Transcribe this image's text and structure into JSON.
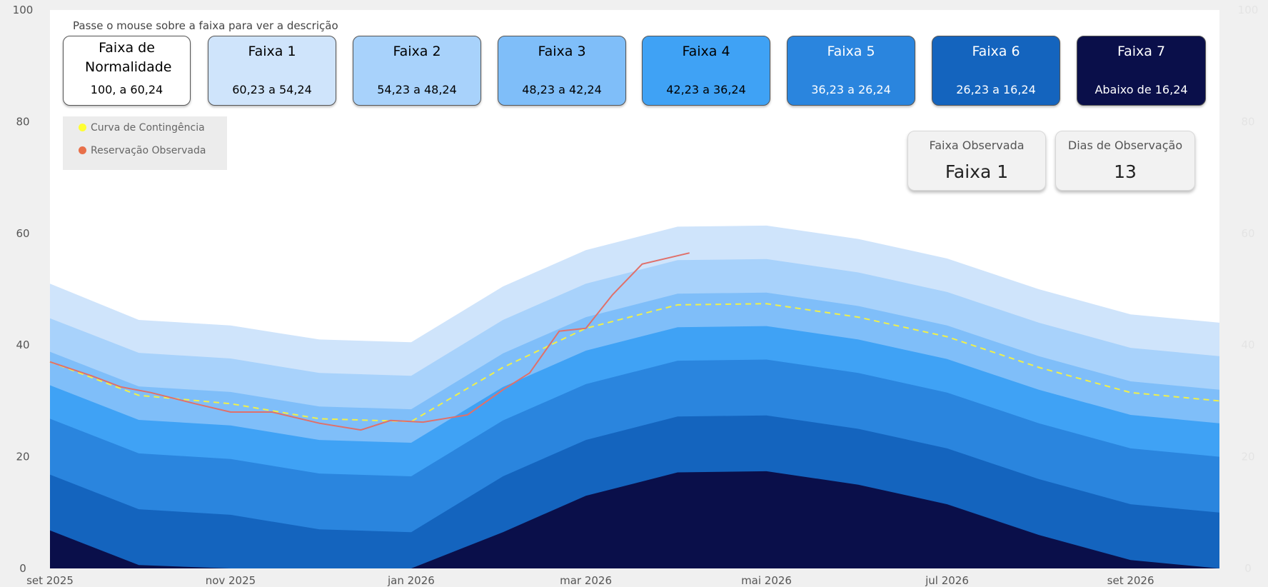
{
  "hint_text": "Passe o mouse sobre a faixa para ver a descrição",
  "bands": [
    {
      "title": "Faixa de Normalidade",
      "range": "100, a 60,24",
      "bg": "#ffffff",
      "fg": "#000000"
    },
    {
      "title": "Faixa 1",
      "range": "60,23 a 54,24",
      "bg": "#cfe4fb",
      "fg": "#000000"
    },
    {
      "title": "Faixa 2",
      "range": "54,23 a 48,24",
      "bg": "#a8d2fb",
      "fg": "#000000"
    },
    {
      "title": "Faixa 3",
      "range": "48,23 a 42,24",
      "bg": "#7fbef9",
      "fg": "#000000"
    },
    {
      "title": "Faixa 4",
      "range": "42,23 a 36,24",
      "bg": "#3fa2f5",
      "fg": "#000000"
    },
    {
      "title": "Faixa 5",
      "range": "36,23 a 26,24",
      "bg": "#2a85de",
      "fg": "#ffffff"
    },
    {
      "title": "Faixa 6",
      "range": "26,23 a 16,24",
      "bg": "#1464be",
      "fg": "#ffffff"
    },
    {
      "title": "Faixa 7",
      "range": "Abaixo de 16,24",
      "bg": "#0a0f4a",
      "fg": "#ffffff"
    }
  ],
  "legend": [
    {
      "label": "Curva de Contingência",
      "color": "#ffff33"
    },
    {
      "label": "Reservação Observada",
      "color": "#e8704a"
    }
  ],
  "kpis": [
    {
      "title": "Faixa Observada",
      "value": "Faixa 1"
    },
    {
      "title": "Dias de Observação",
      "value": "13"
    }
  ],
  "chart_data": {
    "type": "area",
    "x": [
      "2025-09-01",
      "2025-10-01",
      "2025-11-01",
      "2025-12-01",
      "2026-01-01",
      "2026-02-01",
      "2026-03-01",
      "2026-04-01",
      "2026-05-01",
      "2026-06-01",
      "2026-07-01",
      "2026-08-01",
      "2026-09-01",
      "2026-10-01"
    ],
    "x_tick_labels": [
      {
        "date": "2025-09-01",
        "label": "set 2025"
      },
      {
        "date": "2025-11-01",
        "label": "nov 2025"
      },
      {
        "date": "2026-01-01",
        "label": "jan 2026"
      },
      {
        "date": "2026-03-01",
        "label": "mar 2026"
      },
      {
        "date": "2026-05-01",
        "label": "mai 2026"
      },
      {
        "date": "2026-07-01",
        "label": "jul 2026"
      },
      {
        "date": "2026-09-01",
        "label": "set 2026"
      }
    ],
    "ylim": [
      0,
      100
    ],
    "y_ticks": [
      0,
      20,
      40,
      60,
      80,
      100
    ],
    "y2_ticks": [
      0,
      20,
      40,
      60,
      80,
      100
    ],
    "grid": false,
    "legend_position": "top-left",
    "band_upper_limits": [
      [
        51.0,
        44.5,
        43.5,
        41.0,
        40.5,
        50.5,
        57.0,
        61.2,
        61.4,
        59.0,
        55.5,
        50.0,
        45.5,
        44.0
      ],
      [
        44.8,
        38.6,
        37.6,
        35.0,
        34.5,
        44.5,
        51.0,
        55.2,
        55.4,
        53.0,
        49.5,
        44.0,
        39.5,
        38.0
      ],
      [
        38.8,
        32.6,
        31.6,
        29.0,
        28.5,
        38.5,
        45.0,
        49.2,
        49.4,
        47.0,
        43.5,
        38.0,
        33.5,
        32.0
      ],
      [
        32.8,
        26.6,
        25.6,
        23.0,
        22.5,
        32.5,
        39.0,
        43.2,
        43.4,
        41.0,
        37.5,
        32.0,
        27.5,
        26.0
      ],
      [
        26.8,
        20.6,
        19.6,
        17.0,
        16.5,
        26.5,
        33.0,
        37.2,
        37.4,
        35.0,
        31.5,
        26.0,
        21.5,
        20.0
      ],
      [
        16.8,
        10.6,
        9.6,
        7.0,
        6.5,
        16.5,
        23.0,
        27.2,
        27.4,
        25.0,
        21.5,
        16.0,
        11.5,
        10.0
      ],
      [
        6.8,
        0.6,
        0.0,
        0.0,
        0.0,
        6.5,
        13.0,
        17.2,
        17.4,
        15.0,
        11.5,
        6.0,
        1.5,
        0.0
      ]
    ],
    "series": [
      {
        "name": "Curva de Contingência",
        "x": [
          "2025-09-01",
          "2025-10-01",
          "2025-11-01",
          "2025-12-01",
          "2026-01-01",
          "2026-02-01",
          "2026-03-01",
          "2026-04-01",
          "2026-05-01",
          "2026-06-01",
          "2026-07-01",
          "2026-08-01",
          "2026-09-01",
          "2026-10-01"
        ],
        "values": [
          37.0,
          31.0,
          29.5,
          26.8,
          26.3,
          36.0,
          43.0,
          47.2,
          47.4,
          45.0,
          41.5,
          36.0,
          31.5,
          30.0
        ]
      },
      {
        "name": "Reservação Observada",
        "x": [
          "2025-09-01",
          "2025-09-15",
          "2025-09-25",
          "2025-10-05",
          "2025-10-20",
          "2025-11-01",
          "2025-11-15",
          "2025-12-01",
          "2025-12-15",
          "2025-12-25",
          "2026-01-05",
          "2026-01-20",
          "2026-02-01",
          "2026-02-10",
          "2026-02-20",
          "2026-03-01",
          "2026-03-10",
          "2026-03-20",
          "2026-04-05"
        ],
        "values": [
          37.0,
          34.5,
          32.5,
          31.5,
          29.5,
          28.0,
          28.0,
          26.0,
          24.8,
          26.5,
          26.2,
          27.5,
          32.0,
          35.0,
          42.5,
          43.0,
          49.0,
          54.5,
          56.5
        ]
      }
    ]
  }
}
